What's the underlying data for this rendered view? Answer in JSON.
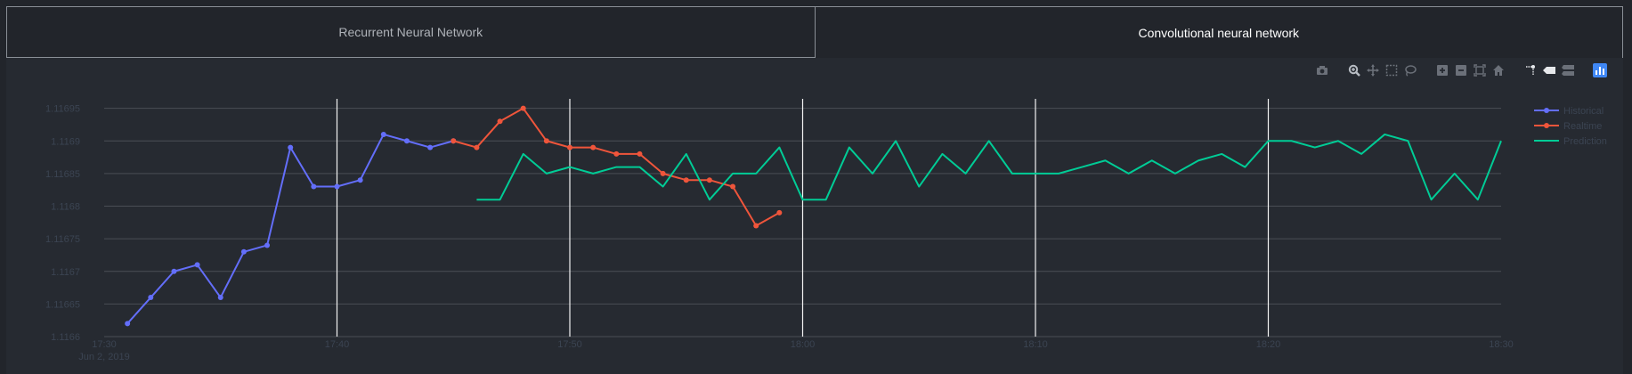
{
  "tabs": [
    {
      "label": "Recurrent Neural Network",
      "active": false
    },
    {
      "label": "Convolutional neural network",
      "active": true
    }
  ],
  "modebar": {
    "icons": [
      "camera-icon",
      "zoom-icon",
      "pan-icon",
      "box-select-icon",
      "lasso-select-icon",
      "zoom-in-icon",
      "zoom-out-icon",
      "autoscale-icon",
      "reset-axes-icon",
      "spike-lines-icon",
      "hover-closest-icon",
      "hover-compare-icon",
      "plotly-logo-icon"
    ]
  },
  "colors": {
    "background": "#262a31",
    "historical": "#636efa",
    "realtime": "#ef553b",
    "prediction": "#00cc96",
    "grid": "#4a4e55",
    "axis_text": "#3b4452"
  },
  "chart_data": {
    "type": "line",
    "title": "",
    "xlabel": "",
    "ylabel": "",
    "x_range": [
      "2019-06-02 17:30",
      "2019-06-02 18:30"
    ],
    "y_range": [
      1.1166,
      1.11697
    ],
    "x_ticks": [
      {
        "time": "17:30",
        "label": "17:30",
        "sublabel": "Jun 2, 2019"
      },
      {
        "time": "17:40",
        "label": "17:40"
      },
      {
        "time": "17:50",
        "label": "17:50"
      },
      {
        "time": "18:00",
        "label": "18:00"
      },
      {
        "time": "18:10",
        "label": "18:10"
      },
      {
        "time": "18:20",
        "label": "18:20"
      },
      {
        "time": "18:30",
        "label": "18:30"
      }
    ],
    "y_ticks": [
      {
        "value": 1.1166,
        "label": "1.1166"
      },
      {
        "value": 1.11665,
        "label": "1.11665"
      },
      {
        "value": 1.1167,
        "label": "1.1167"
      },
      {
        "value": 1.11675,
        "label": "1.11675"
      },
      {
        "value": 1.1168,
        "label": "1.1168"
      },
      {
        "value": 1.11685,
        "label": "1.11685"
      },
      {
        "value": 1.1169,
        "label": "1.1169"
      },
      {
        "value": 1.11695,
        "label": "1.11695"
      }
    ],
    "legend_position": "top-right",
    "series": [
      {
        "name": "Historical",
        "color": "#636efa",
        "mode": "lines+markers",
        "points": [
          [
            "17:31",
            1.11662
          ],
          [
            "17:32",
            1.11666
          ],
          [
            "17:33",
            1.1167
          ],
          [
            "17:34",
            1.11671
          ],
          [
            "17:35",
            1.11666
          ],
          [
            "17:36",
            1.11673
          ],
          [
            "17:37",
            1.11674
          ],
          [
            "17:38",
            1.11689
          ],
          [
            "17:39",
            1.11683
          ],
          [
            "17:40",
            1.11683
          ],
          [
            "17:41",
            1.11684
          ],
          [
            "17:42",
            1.11691
          ],
          [
            "17:43",
            1.1169
          ],
          [
            "17:44",
            1.11689
          ],
          [
            "17:45",
            1.1169
          ]
        ]
      },
      {
        "name": "Realtime",
        "color": "#ef553b",
        "mode": "lines+markers",
        "points": [
          [
            "17:45",
            1.1169
          ],
          [
            "17:46",
            1.11689
          ],
          [
            "17:47",
            1.11693
          ],
          [
            "17:48",
            1.11695
          ],
          [
            "17:49",
            1.1169
          ],
          [
            "17:50",
            1.11689
          ],
          [
            "17:51",
            1.11689
          ],
          [
            "17:52",
            1.11688
          ],
          [
            "17:53",
            1.11688
          ],
          [
            "17:54",
            1.11685
          ],
          [
            "17:55",
            1.11684
          ],
          [
            "17:56",
            1.11684
          ],
          [
            "17:57",
            1.11683
          ],
          [
            "17:58",
            1.11677
          ],
          [
            "17:59",
            1.11679
          ]
        ]
      },
      {
        "name": "Prediction",
        "color": "#00cc96",
        "mode": "lines",
        "points": [
          [
            "17:46",
            1.11681
          ],
          [
            "17:47",
            1.11681
          ],
          [
            "17:48",
            1.11688
          ],
          [
            "17:49",
            1.11685
          ],
          [
            "17:50",
            1.11686
          ],
          [
            "17:51",
            1.11685
          ],
          [
            "17:52",
            1.11686
          ],
          [
            "17:53",
            1.11686
          ],
          [
            "17:54",
            1.11683
          ],
          [
            "17:55",
            1.11688
          ],
          [
            "17:56",
            1.11681
          ],
          [
            "17:57",
            1.11685
          ],
          [
            "17:58",
            1.11685
          ],
          [
            "17:59",
            1.11689
          ],
          [
            "18:00",
            1.11681
          ],
          [
            "18:01",
            1.11681
          ],
          [
            "18:02",
            1.11689
          ],
          [
            "18:03",
            1.11685
          ],
          [
            "18:04",
            1.1169
          ],
          [
            "18:05",
            1.11683
          ],
          [
            "18:06",
            1.11688
          ],
          [
            "18:07",
            1.11685
          ],
          [
            "18:08",
            1.1169
          ],
          [
            "18:09",
            1.11685
          ],
          [
            "18:10",
            1.11685
          ],
          [
            "18:11",
            1.11685
          ],
          [
            "18:12",
            1.11686
          ],
          [
            "18:13",
            1.11687
          ],
          [
            "18:14",
            1.11685
          ],
          [
            "18:15",
            1.11687
          ],
          [
            "18:16",
            1.11685
          ],
          [
            "18:17",
            1.11687
          ],
          [
            "18:18",
            1.11688
          ],
          [
            "18:19",
            1.11686
          ],
          [
            "18:20",
            1.1169
          ],
          [
            "18:21",
            1.1169
          ],
          [
            "18:22",
            1.11689
          ],
          [
            "18:23",
            1.1169
          ],
          [
            "18:24",
            1.11688
          ],
          [
            "18:25",
            1.11691
          ],
          [
            "18:26",
            1.1169
          ],
          [
            "18:27",
            1.11681
          ],
          [
            "18:28",
            1.11685
          ],
          [
            "18:29",
            1.11681
          ],
          [
            "18:30",
            1.1169
          ]
        ]
      }
    ]
  }
}
